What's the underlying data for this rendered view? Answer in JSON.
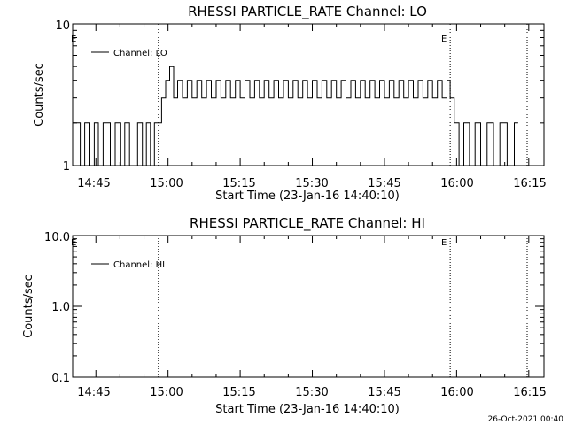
{
  "footer": {
    "timestamp": "26-Oct-2021 00:40"
  },
  "chart_data": [
    {
      "type": "line",
      "title": "RHESSI PARTICLE_RATE Channel: LO",
      "xlabel": "Start Time (23-Jan-16 14:40:10)",
      "ylabel": "Counts/sec",
      "yscale": "log",
      "ylim": [
        1,
        10
      ],
      "y_ticks": [
        "1",
        "10"
      ],
      "xlim_min_since_start": [
        0,
        98
      ],
      "x_tick_labels": [
        "14:45",
        "15:00",
        "15:15",
        "15:30",
        "15:45",
        "16:00",
        "16:15"
      ],
      "legend": {
        "entry": "Channel: LO",
        "placement": "top-left"
      },
      "event_markers": [
        {
          "time": "14:58:00",
          "label": ""
        },
        {
          "time": "15:58:40",
          "label": "E"
        },
        {
          "time": "16:14:40",
          "label": ""
        }
      ],
      "left_marker_label": "E",
      "series": [
        {
          "name": "Channel: LO",
          "x_times": [
            "14:40:10",
            "14:41:45",
            "14:42:40",
            "14:43:45",
            "14:44:40",
            "14:45:30",
            "14:46:30",
            "14:48:00",
            "14:49:00",
            "14:50:10",
            "14:51:00",
            "14:52:00",
            "14:53:40",
            "14:54:40",
            "14:55:30",
            "14:56:20",
            "14:57:10",
            "14:58:00",
            "14:58:40",
            "14:59:30",
            "15:00:20",
            "15:01:10",
            "15:02:00",
            "15:03:00",
            "15:04:00",
            "15:05:00",
            "15:06:00",
            "15:07:00",
            "15:08:00",
            "15:09:00",
            "15:10:00",
            "15:11:00",
            "15:12:00",
            "15:13:00",
            "15:14:00",
            "15:15:00",
            "15:16:00",
            "15:17:00",
            "15:18:00",
            "15:19:00",
            "15:20:00",
            "15:21:00",
            "15:22:00",
            "15:23:00",
            "15:24:00",
            "15:25:00",
            "15:26:00",
            "15:27:00",
            "15:28:00",
            "15:29:00",
            "15:30:00",
            "15:31:00",
            "15:32:00",
            "15:33:00",
            "15:34:00",
            "15:35:00",
            "15:36:00",
            "15:37:00",
            "15:38:00",
            "15:39:00",
            "15:40:00",
            "15:41:00",
            "15:42:00",
            "15:43:00",
            "15:44:00",
            "15:45:00",
            "15:46:00",
            "15:47:00",
            "15:48:00",
            "15:49:00",
            "15:50:00",
            "15:51:00",
            "15:52:00",
            "15:53:00",
            "15:54:00",
            "15:55:00",
            "15:56:00",
            "15:57:00",
            "15:58:00",
            "15:58:40",
            "15:59:30",
            "16:00:30",
            "16:01:30",
            "16:02:40",
            "16:03:50",
            "16:05:00",
            "16:06:20",
            "16:07:40",
            "16:09:00",
            "16:10:30",
            "16:12:00"
          ],
          "y": [
            2,
            1,
            2,
            1,
            2,
            1,
            2,
            1,
            2,
            1,
            2,
            1,
            2,
            1,
            2,
            1,
            2,
            2,
            3,
            4,
            5,
            3,
            4,
            3,
            4,
            3,
            4,
            3,
            4,
            3,
            4,
            3,
            4,
            3,
            4,
            3,
            4,
            3,
            4,
            3,
            4,
            3,
            4,
            3,
            4,
            3,
            4,
            3,
            4,
            3,
            4,
            3,
            4,
            3,
            4,
            3,
            4,
            3,
            4,
            3,
            4,
            3,
            4,
            3,
            4,
            3,
            4,
            3,
            4,
            3,
            4,
            3,
            4,
            3,
            4,
            3,
            4,
            3,
            4,
            3,
            2,
            1,
            2,
            1,
            2,
            1,
            2,
            1,
            2,
            1,
            2
          ]
        }
      ]
    },
    {
      "type": "line",
      "title": "RHESSI PARTICLE_RATE Channel: HI",
      "xlabel": "Start Time (23-Jan-16 14:40:10)",
      "ylabel": "Counts/sec",
      "yscale": "log",
      "ylim": [
        0.1,
        10
      ],
      "y_ticks": [
        "0.1",
        "1.0",
        "10.0"
      ],
      "xlim_min_since_start": [
        0,
        98
      ],
      "x_tick_labels": [
        "14:45",
        "15:00",
        "15:15",
        "15:30",
        "15:45",
        "16:00",
        "16:15"
      ],
      "legend": {
        "entry": "Channel: HI",
        "placement": "top-left"
      },
      "event_markers": [
        {
          "time": "14:58:00",
          "label": ""
        },
        {
          "time": "15:58:40",
          "label": "E"
        },
        {
          "time": "16:14:40",
          "label": ""
        }
      ],
      "left_marker_label": "E",
      "series": [
        {
          "name": "Channel: HI",
          "x_times": [],
          "y": []
        }
      ]
    }
  ]
}
